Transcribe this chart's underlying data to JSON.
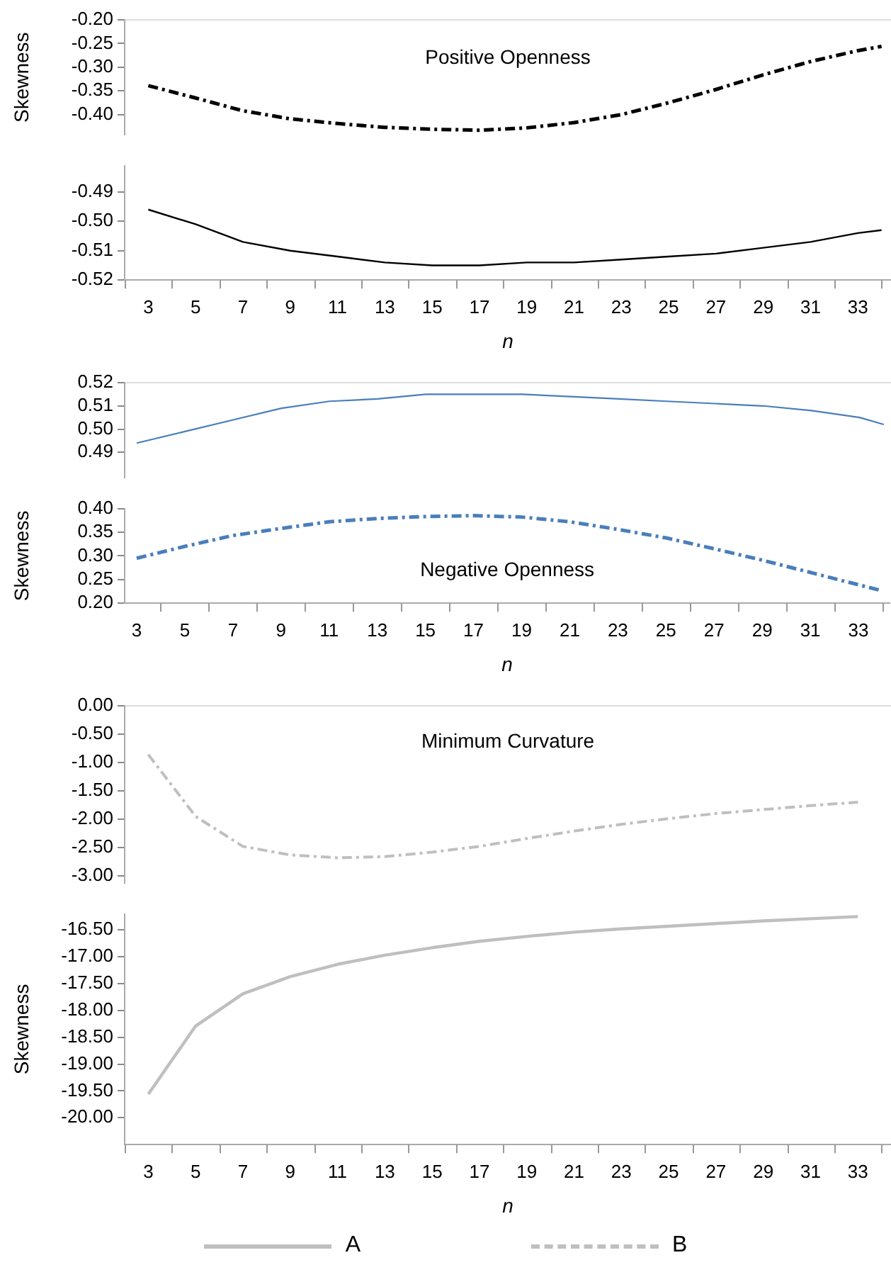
{
  "chart_data": [
    {
      "type": "line",
      "title": "Positive Openness",
      "ylabel": "Skewness",
      "grid": false,
      "legend": false,
      "marker": "none",
      "tick_labels": "y",
      "x": [
        3,
        5,
        7,
        9,
        11,
        13,
        15,
        17,
        19,
        21,
        23,
        25,
        27,
        29,
        31,
        33,
        34
      ],
      "xlim": [
        2,
        34.4
      ],
      "ylim": [
        -0.443,
        -0.2
      ],
      "yticks": [
        {
          "value": -0.4,
          "label": "-0.40"
        },
        {
          "value": -0.35,
          "label": "-0.35"
        },
        {
          "value": -0.3,
          "label": "-0.30"
        },
        {
          "value": -0.25,
          "label": "-0.25"
        },
        {
          "value": -0.2,
          "label": "-0.20"
        }
      ],
      "series": [
        {
          "color": "#000000",
          "line_style": "dashed",
          "values": [
            -0.339,
            -0.365,
            -0.392,
            -0.409,
            -0.419,
            -0.427,
            -0.431,
            -0.433,
            -0.428,
            -0.417,
            -0.4,
            -0.375,
            -0.347,
            -0.316,
            -0.288,
            -0.265,
            -0.256
          ]
        }
      ]
    },
    {
      "type": "line",
      "xlabel": "n",
      "grid": false,
      "legend": false,
      "marker": "none",
      "x": [
        3,
        5,
        7,
        9,
        11,
        13,
        15,
        17,
        19,
        21,
        23,
        25,
        27,
        29,
        31,
        33,
        34
      ],
      "xlim": [
        2,
        34.4
      ],
      "xticks": [
        {
          "value": 2,
          "label": null
        },
        3,
        {
          "value": 4,
          "label": null
        },
        5,
        {
          "value": 6,
          "label": null
        },
        7,
        {
          "value": 8,
          "label": null
        },
        9,
        {
          "value": 10,
          "label": null
        },
        11,
        {
          "value": 12,
          "label": null
        },
        13,
        {
          "value": 14,
          "label": null
        },
        15,
        {
          "value": 16,
          "label": null
        },
        17,
        {
          "value": 18,
          "label": null
        },
        19,
        {
          "value": 20,
          "label": null
        },
        21,
        {
          "value": 22,
          "label": null
        },
        23,
        {
          "value": 24,
          "label": null
        },
        25,
        {
          "value": 26,
          "label": null
        },
        27,
        {
          "value": 28,
          "label": null
        },
        29,
        {
          "value": 30,
          "label": null
        },
        31,
        {
          "value": 32,
          "label": null
        },
        33,
        {
          "value": 34,
          "label": null
        }
      ],
      "ylim": [
        -0.52,
        -0.481
      ],
      "yticks": [
        {
          "value": -0.52,
          "label": "-0.52"
        },
        {
          "value": -0.51,
          "label": "-0.51"
        },
        {
          "value": -0.5,
          "label": "-0.50"
        },
        {
          "value": -0.49,
          "label": "-0.49"
        }
      ],
      "series": [
        {
          "color": "#000000",
          "line_style": "solid",
          "values": [
            -0.496,
            -0.501,
            -0.507,
            -0.51,
            -0.512,
            -0.514,
            -0.515,
            -0.515,
            -0.514,
            -0.514,
            -0.513,
            -0.512,
            -0.511,
            -0.509,
            -0.507,
            -0.504,
            -0.503
          ]
        }
      ]
    },
    {
      "type": "line",
      "grid": false,
      "legend": false,
      "marker": "none",
      "tick_labels": "y",
      "x": [
        3,
        5,
        7,
        9,
        11,
        13,
        15,
        17,
        19,
        21,
        23,
        25,
        27,
        29,
        31,
        33,
        34
      ],
      "xlim": [
        2.5,
        34.3
      ],
      "ylim": [
        0.479,
        0.52
      ],
      "yticks": [
        {
          "value": 0.49,
          "label": "0.49"
        },
        {
          "value": 0.5,
          "label": "0.50"
        },
        {
          "value": 0.51,
          "label": "0.51"
        },
        {
          "value": 0.52,
          "label": "0.52"
        }
      ],
      "series": [
        {
          "color": "#4a7ebb",
          "line_style": "solid",
          "values": [
            0.494,
            0.499,
            0.504,
            0.509,
            0.512,
            0.513,
            0.515,
            0.515,
            0.515,
            0.514,
            0.513,
            0.512,
            0.511,
            0.51,
            0.508,
            0.505,
            0.502
          ]
        }
      ]
    },
    {
      "type": "line",
      "title": "Negative Openness",
      "xlabel": "n",
      "ylabel": "Skewness",
      "grid": false,
      "legend": false,
      "marker": "none",
      "x": [
        3,
        5,
        7,
        9,
        11,
        13,
        15,
        17,
        19,
        21,
        23,
        25,
        27,
        29,
        31,
        33,
        34
      ],
      "xlim": [
        2.5,
        34.3
      ],
      "xticks": [
        3,
        {
          "value": 4,
          "label": null
        },
        5,
        {
          "value": 6,
          "label": null
        },
        7,
        {
          "value": 8,
          "label": null
        },
        9,
        {
          "value": 10,
          "label": null
        },
        11,
        {
          "value": 12,
          "label": null
        },
        13,
        {
          "value": 14,
          "label": null
        },
        15,
        {
          "value": 16,
          "label": null
        },
        17,
        {
          "value": 18,
          "label": null
        },
        19,
        {
          "value": 20,
          "label": null
        },
        21,
        {
          "value": 22,
          "label": null
        },
        23,
        {
          "value": 24,
          "label": null
        },
        25,
        {
          "value": 26,
          "label": null
        },
        27,
        {
          "value": 28,
          "label": null
        },
        29,
        {
          "value": 30,
          "label": null
        },
        31,
        {
          "value": 32,
          "label": null
        },
        33,
        {
          "value": 34,
          "label": null
        }
      ],
      "ylim": [
        0.2,
        0.4
      ],
      "yticks": [
        {
          "value": 0.2,
          "label": "0.20"
        },
        {
          "value": 0.25,
          "label": "0.25"
        },
        {
          "value": 0.3,
          "label": "0.30"
        },
        {
          "value": 0.35,
          "label": "0.35"
        },
        {
          "value": 0.4,
          "label": "0.40"
        }
      ],
      "series": [
        {
          "color": "#4a7ebb",
          "line_style": "dashed",
          "values": [
            0.295,
            0.32,
            0.343,
            0.358,
            0.372,
            0.379,
            0.383,
            0.385,
            0.382,
            0.372,
            0.356,
            0.338,
            0.315,
            0.291,
            0.265,
            0.239,
            0.226
          ]
        }
      ]
    },
    {
      "type": "line",
      "title": "Minimum Curvature",
      "grid": false,
      "legend": "bottom",
      "marker": "none",
      "tick_labels": "y",
      "x": [
        3,
        5,
        7,
        9,
        11,
        13,
        15,
        17,
        19,
        21,
        23,
        25,
        27,
        29,
        31,
        33
      ],
      "xlim": [
        2,
        34.4
      ],
      "ylim": [
        -3.13,
        0
      ],
      "yticks": [
        {
          "value": -3,
          "label": "-3.00"
        },
        {
          "value": -2.5,
          "label": "-2.50"
        },
        {
          "value": -2,
          "label": "-2.00"
        },
        {
          "value": -1.5,
          "label": "-1.50"
        },
        {
          "value": -1,
          "label": "-1.00"
        },
        {
          "value": -0.5,
          "label": "-0.50"
        },
        {
          "value": 0,
          "label": "0.00"
        }
      ],
      "series": [
        {
          "name": "B",
          "color": "#bfbfbf",
          "line_style": "dashed",
          "values": [
            -0.86,
            -1.95,
            -2.48,
            -2.63,
            -2.68,
            -2.66,
            -2.58,
            -2.48,
            -2.34,
            -2.21,
            -2.09,
            -1.99,
            -1.9,
            -1.83,
            -1.76,
            -1.7
          ]
        }
      ]
    },
    {
      "type": "line",
      "xlabel": "n",
      "ylabel": "Skewness",
      "grid": false,
      "legend": "bottom",
      "marker": "none",
      "x": [
        3,
        5,
        7,
        9,
        11,
        13,
        15,
        17,
        19,
        21,
        23,
        25,
        27,
        29,
        31,
        33
      ],
      "xlim": [
        2,
        34.4
      ],
      "xticks": [
        {
          "value": 2,
          "label": null
        },
        3,
        {
          "value": 4,
          "label": null
        },
        5,
        {
          "value": 6,
          "label": null
        },
        7,
        {
          "value": 8,
          "label": null
        },
        9,
        {
          "value": 10,
          "label": null
        },
        11,
        {
          "value": 12,
          "label": null
        },
        13,
        {
          "value": 14,
          "label": null
        },
        15,
        {
          "value": 16,
          "label": null
        },
        17,
        {
          "value": 18,
          "label": null
        },
        19,
        {
          "value": 20,
          "label": null
        },
        21,
        {
          "value": 22,
          "label": null
        },
        23,
        {
          "value": 24,
          "label": null
        },
        25,
        {
          "value": 26,
          "label": null
        },
        27,
        {
          "value": 28,
          "label": null
        },
        29,
        {
          "value": 30,
          "label": null
        },
        31,
        {
          "value": 32,
          "label": null
        },
        33,
        {
          "value": 34,
          "label": null
        }
      ],
      "ylim": [
        -20.5,
        -16.2
      ],
      "yticks": [
        {
          "value": -20,
          "label": "-20.00"
        },
        {
          "value": -19.5,
          "label": "-19.50"
        },
        {
          "value": -19,
          "label": "-19.00"
        },
        {
          "value": -18.5,
          "label": "-18.50"
        },
        {
          "value": -18,
          "label": "-18.00"
        },
        {
          "value": -17.5,
          "label": "-17.50"
        },
        {
          "value": -17,
          "label": "-17.00"
        },
        {
          "value": -16.5,
          "label": "-16.50"
        }
      ],
      "series": [
        {
          "name": "A",
          "color": "#bfbfbf",
          "line_style": "solid",
          "values": [
            -19.56,
            -18.29,
            -17.69,
            -17.37,
            -17.14,
            -16.97,
            -16.83,
            -16.71,
            -16.62,
            -16.54,
            -16.48,
            -16.43,
            -16.38,
            -16.33,
            -16.29,
            -16.25
          ]
        }
      ]
    }
  ]
}
